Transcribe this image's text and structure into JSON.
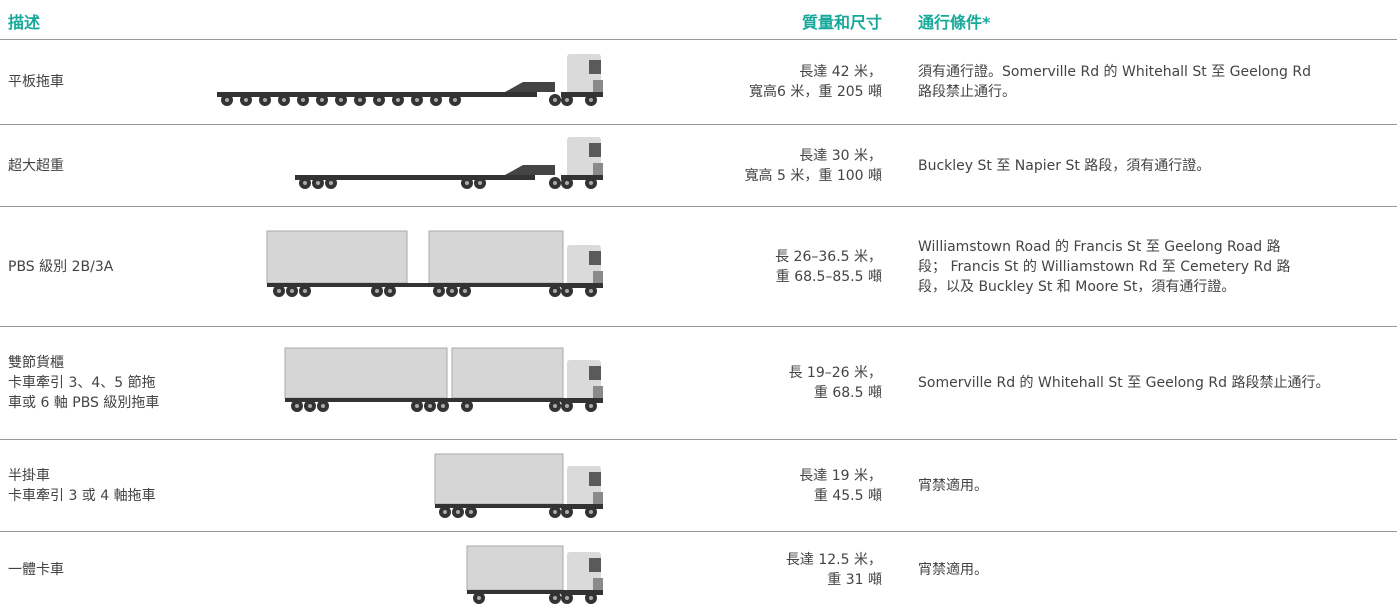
{
  "table": {
    "header": [
      "描述",
      "質量和尺寸",
      "通行條件*"
    ],
    "rows": [
      {
        "description": [
          "平板拖車"
        ],
        "dimensions": [
          "長達 42 米，",
          "寬高6 米，重 205 噸"
        ],
        "conditions": [
          "須有通行證。Somerville Rd 的 Whitehall St 至 Geelong Rd",
          "路段禁止通行。"
        ]
      },
      {
        "description": [
          "超大超重"
        ],
        "dimensions": [
          "長達 30 米，",
          "寬高 5 米，重 100 噸"
        ],
        "conditions": [
          "Buckley St 至 Napier St 路段，須有通行證。"
        ]
      },
      {
        "description": [
          "PBS 級別 2B/3A"
        ],
        "dimensions": [
          "長 26–36.5 米，",
          "重 68.5–85.5 噸"
        ],
        "conditions": [
          "Williamstown Road 的 Francis St 至 Geelong Road 路",
          "段； Francis St 的 Williamstown Rd 至 Cemetery Rd 路",
          "段，以及 Buckley St 和 Moore St，須有通行證。"
        ]
      },
      {
        "description": [
          "雙節貨櫃",
          "卡車牽引 3、4、5 節拖",
          "車或 6 軸 PBS 級別拖車"
        ],
        "dimensions": [
          "長 19–26 米，",
          "重 68.5 噸"
        ],
        "conditions": [
          "Somerville Rd 的 Whitehall St 至 Geelong Rd 路段禁止通行。"
        ]
      },
      {
        "description": [
          "半掛車",
          "卡車牽引 3 或 4 軸拖車"
        ],
        "dimensions": [
          "長達 19 米，",
          "重 45.5 噸"
        ],
        "conditions": [
          "宵禁適用。"
        ]
      },
      {
        "description": [
          "一體卡車"
        ],
        "dimensions": [
          "長達 12.5 米，",
          "重 31 噸"
        ],
        "conditions": [
          "宵禁適用。"
        ]
      }
    ]
  }
}
